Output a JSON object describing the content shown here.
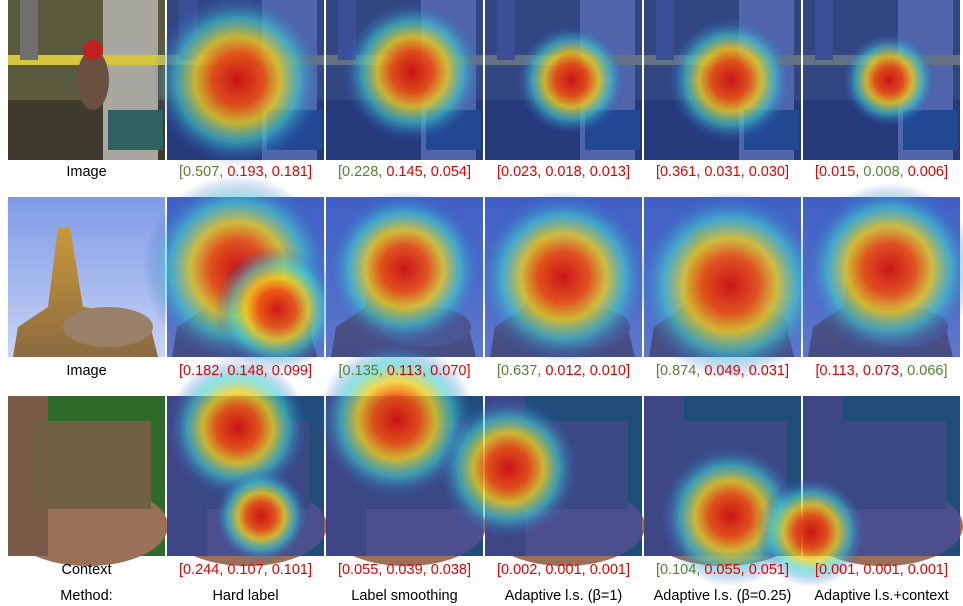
{
  "figure": {
    "bracket_open": "[",
    "separator": ", ",
    "bracket_close": "]",
    "rows": [
      {
        "label": "Image",
        "captions": [
          {
            "values": [
              "0.507",
              "0.193",
              "0.181"
            ],
            "colors": [
              "green",
              "red",
              "red"
            ]
          },
          {
            "values": [
              "0.228",
              "0.145",
              "0.054"
            ],
            "colors": [
              "green",
              "red",
              "red"
            ]
          },
          {
            "values": [
              "0.023",
              "0.018",
              "0.013"
            ],
            "colors": [
              "red",
              "red",
              "red"
            ]
          },
          {
            "values": [
              "0.361",
              "0.031",
              "0.030"
            ],
            "colors": [
              "red",
              "red",
              "red"
            ]
          },
          {
            "values": [
              "0.015",
              "0.008",
              "0.006"
            ],
            "colors": [
              "red",
              "green",
              "red"
            ]
          }
        ]
      },
      {
        "label": "Image",
        "captions": [
          {
            "values": [
              "0.182",
              "0.148",
              "0.099"
            ],
            "colors": [
              "red",
              "red",
              "red"
            ]
          },
          {
            "values": [
              "0.135",
              "0.113",
              "0.070"
            ],
            "colors": [
              "green",
              "red",
              "red"
            ]
          },
          {
            "values": [
              "0.637",
              "0.012",
              "0.010"
            ],
            "colors": [
              "green",
              "red",
              "red"
            ]
          },
          {
            "values": [
              "0.874",
              "0.049",
              "0.031"
            ],
            "colors": [
              "green",
              "red",
              "red"
            ]
          },
          {
            "values": [
              "0.113",
              "0.073",
              "0.066"
            ],
            "colors": [
              "red",
              "red",
              "green"
            ]
          }
        ]
      },
      {
        "label": "Context",
        "captions": [
          {
            "values": [
              "0.244",
              "0.107",
              "0.101"
            ],
            "colors": [
              "red",
              "red",
              "red"
            ]
          },
          {
            "values": [
              "0.055",
              "0.039",
              "0.038"
            ],
            "colors": [
              "red",
              "red",
              "red"
            ]
          },
          {
            "values": [
              "0.002",
              "0.001",
              "0.001"
            ],
            "colors": [
              "red",
              "red",
              "red"
            ]
          },
          {
            "values": [
              "0.104",
              "0.055",
              "0.051"
            ],
            "colors": [
              "green",
              "red",
              "red"
            ]
          },
          {
            "values": [
              "0.001",
              "0.001",
              "0.001"
            ],
            "colors": [
              "red",
              "red",
              "red"
            ]
          }
        ]
      }
    ],
    "method_label": "Method:",
    "methods": [
      "Hard label",
      "Label smoothing",
      "Adaptive l.s. (β=1)",
      "Adaptive l.s. (β=0.25)",
      "Adaptive l.s.+context"
    ]
  }
}
